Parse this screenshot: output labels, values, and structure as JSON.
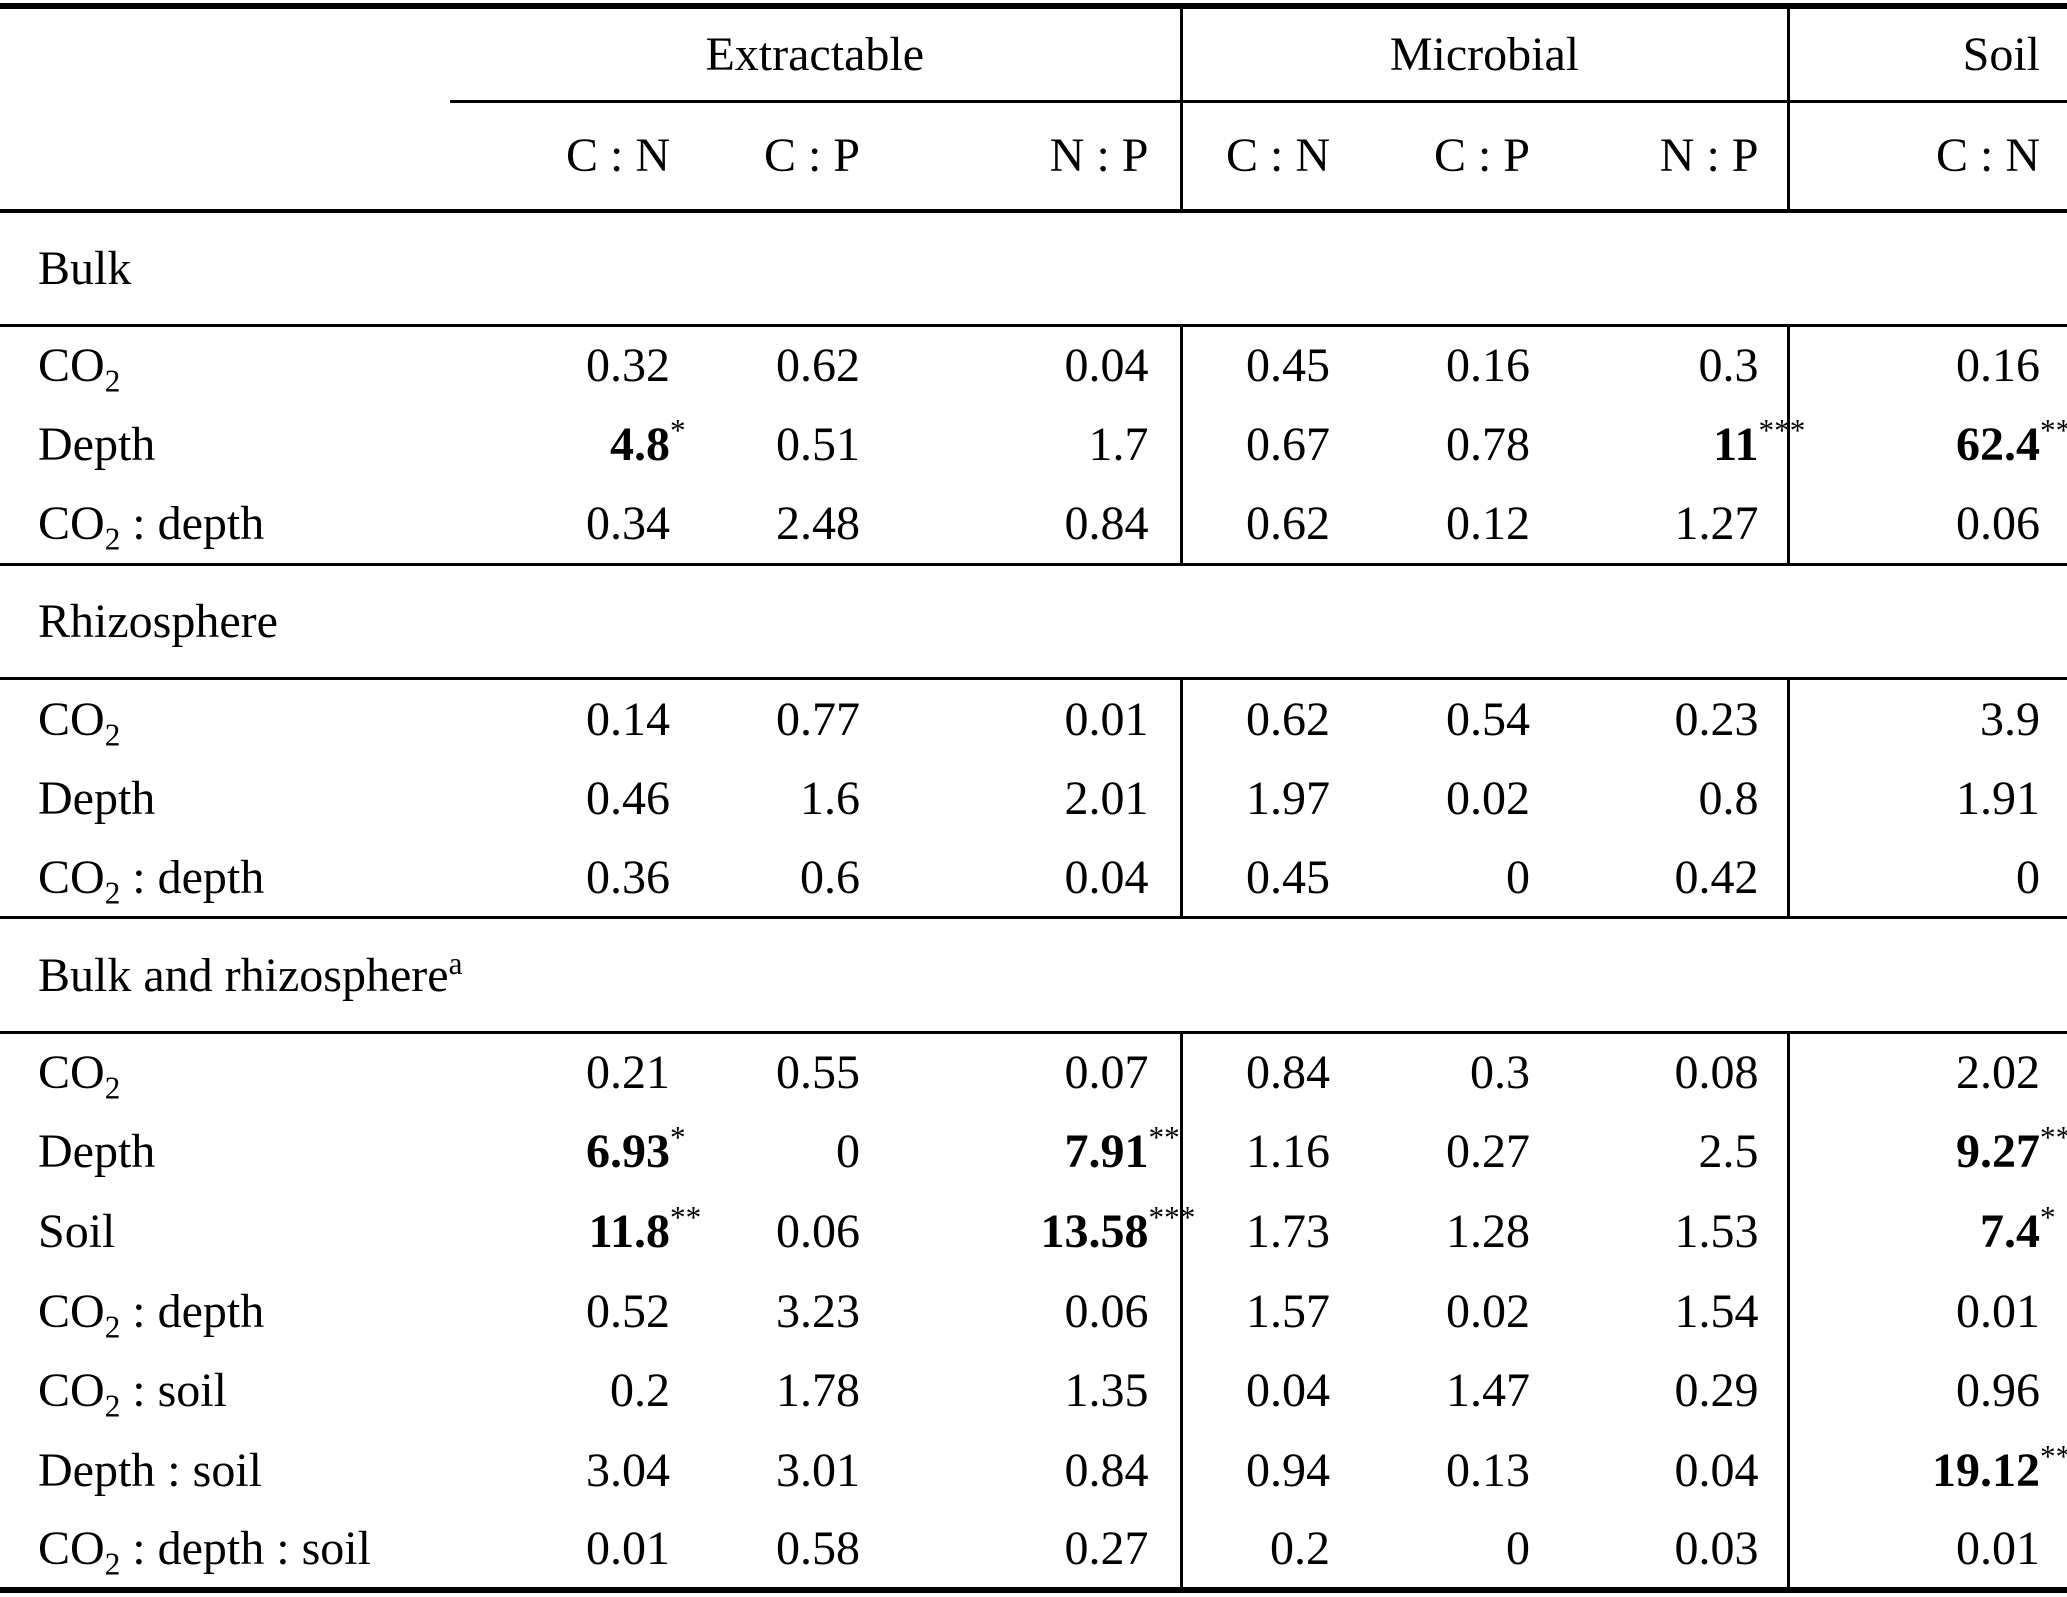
{
  "table": {
    "colors": {
      "text": "#000000",
      "background": "#ffffff",
      "rule": "#000000"
    },
    "columns": {
      "groups": [
        {
          "label": "Extractable",
          "cols": [
            "C : N",
            "C : P",
            "N : P"
          ]
        },
        {
          "label": "Microbial",
          "cols": [
            "C : N",
            "C : P",
            "N : P"
          ]
        },
        {
          "label": "Soil",
          "cols": [
            "C : N"
          ]
        }
      ]
    },
    "sections": [
      {
        "title": {
          "parts": [
            {
              "t": "Bulk"
            }
          ]
        },
        "rows": [
          {
            "label": {
              "parts": [
                {
                  "t": "CO"
                },
                {
                  "sub": "2"
                }
              ]
            },
            "cells": [
              {
                "v": "0.32"
              },
              {
                "v": "0.62"
              },
              {
                "v": "0.04"
              },
              {
                "v": "0.45"
              },
              {
                "v": "0.16"
              },
              {
                "v": "0.3"
              },
              {
                "v": "0.16"
              }
            ]
          },
          {
            "label": {
              "parts": [
                {
                  "t": "Depth"
                }
              ]
            },
            "cells": [
              {
                "v": "4.8",
                "b": 1,
                "s": "*"
              },
              {
                "v": "0.51"
              },
              {
                "v": "1.7"
              },
              {
                "v": "0.67"
              },
              {
                "v": "0.78"
              },
              {
                "v": "11",
                "b": 1,
                "s": "***"
              },
              {
                "v": "62.4",
                "b": 1,
                "s": "***"
              }
            ]
          },
          {
            "label": {
              "parts": [
                {
                  "t": "CO"
                },
                {
                  "sub": "2"
                },
                {
                  "t": " : depth"
                }
              ]
            },
            "cells": [
              {
                "v": "0.34"
              },
              {
                "v": "2.48"
              },
              {
                "v": "0.84"
              },
              {
                "v": "0.62"
              },
              {
                "v": "0.12"
              },
              {
                "v": "1.27"
              },
              {
                "v": "0.06"
              }
            ]
          }
        ]
      },
      {
        "title": {
          "parts": [
            {
              "t": "Rhizosphere"
            }
          ]
        },
        "rows": [
          {
            "label": {
              "parts": [
                {
                  "t": "CO"
                },
                {
                  "sub": "2"
                }
              ]
            },
            "cells": [
              {
                "v": "0.14"
              },
              {
                "v": "0.77"
              },
              {
                "v": "0.01"
              },
              {
                "v": "0.62"
              },
              {
                "v": "0.54"
              },
              {
                "v": "0.23"
              },
              {
                "v": "3.9"
              }
            ]
          },
          {
            "label": {
              "parts": [
                {
                  "t": "Depth"
                }
              ]
            },
            "cells": [
              {
                "v": "0.46"
              },
              {
                "v": "1.6"
              },
              {
                "v": "2.01"
              },
              {
                "v": "1.97"
              },
              {
                "v": "0.02"
              },
              {
                "v": "0.8"
              },
              {
                "v": "1.91"
              }
            ]
          },
          {
            "label": {
              "parts": [
                {
                  "t": "CO"
                },
                {
                  "sub": "2"
                },
                {
                  "t": " : depth"
                }
              ]
            },
            "cells": [
              {
                "v": "0.36"
              },
              {
                "v": "0.6"
              },
              {
                "v": "0.04"
              },
              {
                "v": "0.45"
              },
              {
                "v": "0"
              },
              {
                "v": "0.42"
              },
              {
                "v": "0"
              }
            ]
          }
        ]
      },
      {
        "title": {
          "parts": [
            {
              "t": "Bulk and rhizosphere"
            },
            {
              "sup": "a"
            }
          ]
        },
        "rows": [
          {
            "label": {
              "parts": [
                {
                  "t": "CO"
                },
                {
                  "sub": "2"
                }
              ]
            },
            "cells": [
              {
                "v": "0.21"
              },
              {
                "v": "0.55"
              },
              {
                "v": "0.07"
              },
              {
                "v": "0.84"
              },
              {
                "v": "0.3"
              },
              {
                "v": "0.08"
              },
              {
                "v": "2.02"
              }
            ]
          },
          {
            "label": {
              "parts": [
                {
                  "t": "Depth"
                }
              ]
            },
            "cells": [
              {
                "v": "6.93",
                "b": 1,
                "s": "*"
              },
              {
                "v": "0"
              },
              {
                "v": "7.91",
                "b": 1,
                "s": "**"
              },
              {
                "v": "1.16"
              },
              {
                "v": "0.27"
              },
              {
                "v": "2.5"
              },
              {
                "v": "9.27",
                "b": 1,
                "s": "**"
              }
            ]
          },
          {
            "label": {
              "parts": [
                {
                  "t": "Soil"
                }
              ]
            },
            "cells": [
              {
                "v": "11.8",
                "b": 1,
                "s": "**"
              },
              {
                "v": "0.06"
              },
              {
                "v": "13.58",
                "b": 1,
                "s": "***"
              },
              {
                "v": "1.73"
              },
              {
                "v": "1.28"
              },
              {
                "v": "1.53"
              },
              {
                "v": "7.4",
                "b": 1,
                "s": "*"
              }
            ]
          },
          {
            "label": {
              "parts": [
                {
                  "t": "CO"
                },
                {
                  "sub": "2"
                },
                {
                  "t": " : depth"
                }
              ]
            },
            "cells": [
              {
                "v": "0.52"
              },
              {
                "v": "3.23"
              },
              {
                "v": "0.06"
              },
              {
                "v": "1.57"
              },
              {
                "v": "0.02"
              },
              {
                "v": "1.54"
              },
              {
                "v": "0.01"
              }
            ]
          },
          {
            "label": {
              "parts": [
                {
                  "t": "CO"
                },
                {
                  "sub": "2"
                },
                {
                  "t": " : soil"
                }
              ]
            },
            "cells": [
              {
                "v": "0.2"
              },
              {
                "v": "1.78"
              },
              {
                "v": "1.35"
              },
              {
                "v": "0.04"
              },
              {
                "v": "1.47"
              },
              {
                "v": "0.29"
              },
              {
                "v": "0.96"
              }
            ]
          },
          {
            "label": {
              "parts": [
                {
                  "t": "Depth : soil"
                }
              ]
            },
            "cells": [
              {
                "v": "3.04"
              },
              {
                "v": "3.01"
              },
              {
                "v": "0.84"
              },
              {
                "v": "0.94"
              },
              {
                "v": "0.13"
              },
              {
                "v": "0.04"
              },
              {
                "v": "19.12",
                "b": 1,
                "s": "***"
              }
            ]
          },
          {
            "label": {
              "parts": [
                {
                  "t": "CO"
                },
                {
                  "sub": "2"
                },
                {
                  "t": " : depth : soil"
                }
              ]
            },
            "cells": [
              {
                "v": "0.01"
              },
              {
                "v": "0.58"
              },
              {
                "v": "0.27"
              },
              {
                "v": "0.2"
              },
              {
                "v": "0"
              },
              {
                "v": "0.03"
              },
              {
                "v": "0.01"
              }
            ]
          }
        ]
      }
    ]
  }
}
